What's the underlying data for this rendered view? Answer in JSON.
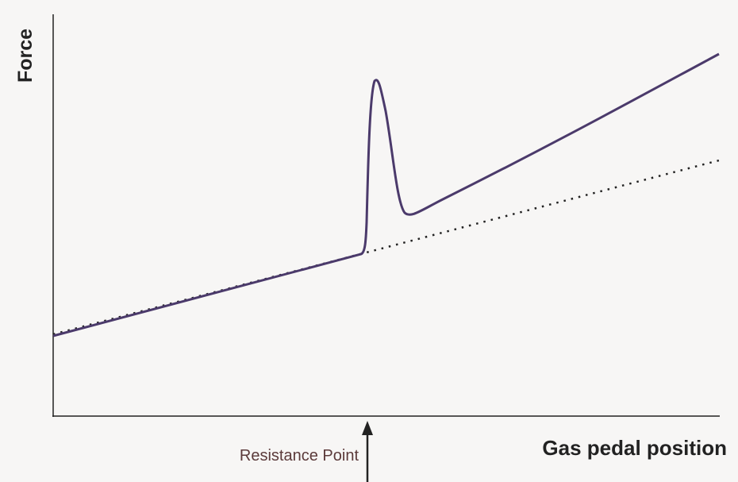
{
  "diagram": {
    "y_axis_label": "Force",
    "x_axis_label": "Gas pedal position",
    "annotation": "Resistance Point"
  }
}
